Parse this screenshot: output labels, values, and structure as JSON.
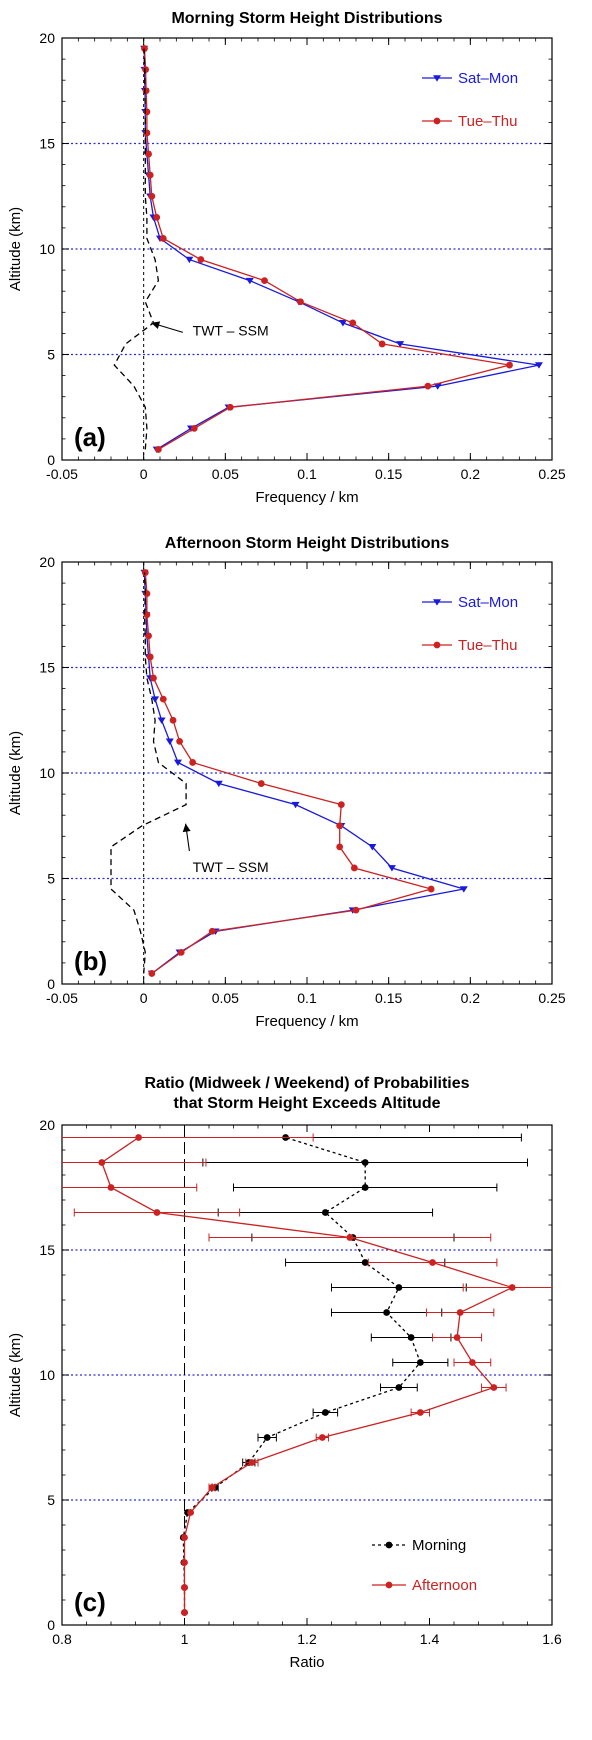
{
  "colors": {
    "sat_mon": "#1a1adc",
    "tue_thu": "#cc2222",
    "morning": "#000000",
    "afternoon": "#cc2222",
    "gridline": "#2a2ae0",
    "diff": "#000000"
  },
  "chart_data": [
    {
      "type": "line",
      "title": "Morning Storm Height Distributions",
      "panel_label": "(a)",
      "xlabel": "Frequency / km",
      "ylabel": "Altitude (km)",
      "xlim": [
        -0.05,
        0.25
      ],
      "ylim": [
        0,
        20
      ],
      "xticks": [
        "-0.05",
        "0",
        "0.05",
        "0.1",
        "0.15",
        "0.2",
        "0.25"
      ],
      "yticks": [
        "0",
        "5",
        "10",
        "15",
        "20"
      ],
      "hgrid": [
        5,
        10,
        15
      ],
      "legend_position": "top-right",
      "series": [
        {
          "name": "Sat–Mon",
          "marker": "triangle",
          "x": [
            0.008,
            0.029,
            0.052,
            0.18,
            0.242,
            0.157,
            0.122,
            0.095,
            0.065,
            0.028,
            0.01,
            0.006,
            0.004,
            0.003,
            0.002,
            0.001,
            0.001,
            0.0008,
            0.0005,
            0.0003
          ],
          "y": [
            0.5,
            1.5,
            2.5,
            3.5,
            4.5,
            5.5,
            6.5,
            7.5,
            8.5,
            9.5,
            10.5,
            11.5,
            12.5,
            13.5,
            14.5,
            15.5,
            16.5,
            17.5,
            18.5,
            19.5
          ]
        },
        {
          "name": "Tue–Thu",
          "marker": "circle",
          "x": [
            0.009,
            0.031,
            0.053,
            0.174,
            0.224,
            0.146,
            0.128,
            0.096,
            0.074,
            0.035,
            0.012,
            0.008,
            0.005,
            0.004,
            0.003,
            0.002,
            0.002,
            0.0015,
            0.0012,
            0.0005
          ],
          "y": [
            0.5,
            1.5,
            2.5,
            3.5,
            4.5,
            5.5,
            6.5,
            7.5,
            8.5,
            9.5,
            10.5,
            11.5,
            12.5,
            13.5,
            14.5,
            15.5,
            16.5,
            17.5,
            18.5,
            19.5
          ]
        },
        {
          "name": "TWT – SSM",
          "style": "dashed",
          "x": [
            0.001,
            0.002,
            0.001,
            -0.006,
            -0.018,
            -0.011,
            0.006,
            0.001,
            0.009,
            0.007,
            0.002,
            0.002,
            0.001,
            0.001,
            0.001,
            0.001,
            0.001,
            0.0007,
            0.0007,
            0.0002
          ],
          "y": [
            0.5,
            1.5,
            2.5,
            3.5,
            4.5,
            5.5,
            6.5,
            7.5,
            8.5,
            9.5,
            10.5,
            11.5,
            12.5,
            13.5,
            14.5,
            15.5,
            16.5,
            17.5,
            18.5,
            19.5
          ]
        }
      ],
      "annotations": [
        {
          "text": "TWT – SSM",
          "arrow_to": [
            0.001,
            6.5
          ]
        }
      ]
    },
    {
      "type": "line",
      "title": "Afternoon Storm Height Distributions",
      "panel_label": "(b)",
      "xlabel": "Frequency / km",
      "ylabel": "Altitude (km)",
      "xlim": [
        -0.05,
        0.25
      ],
      "ylim": [
        0,
        20
      ],
      "xticks": [
        "-0.05",
        "0",
        "0.05",
        "0.1",
        "0.15",
        "0.2",
        "0.25"
      ],
      "yticks": [
        "0",
        "5",
        "10",
        "15",
        "20"
      ],
      "hgrid": [
        5,
        10,
        15
      ],
      "legend_position": "top-right",
      "series": [
        {
          "name": "Sat–Mon",
          "marker": "triangle",
          "x": [
            0.005,
            0.022,
            0.044,
            0.128,
            0.196,
            0.152,
            0.14,
            0.121,
            0.093,
            0.046,
            0.021,
            0.016,
            0.011,
            0.007,
            0.004,
            0.003,
            0.002,
            0.0015,
            0.001,
            0.0005
          ],
          "y": [
            0.5,
            1.5,
            2.5,
            3.5,
            4.5,
            5.5,
            6.5,
            7.5,
            8.5,
            9.5,
            10.5,
            11.5,
            12.5,
            13.5,
            14.5,
            15.5,
            16.5,
            17.5,
            18.5,
            19.5
          ]
        },
        {
          "name": "Tue–Thu",
          "marker": "circle",
          "x": [
            0.005,
            0.023,
            0.042,
            0.13,
            0.176,
            0.129,
            0.12,
            0.12,
            0.121,
            0.072,
            0.03,
            0.022,
            0.018,
            0.012,
            0.006,
            0.004,
            0.003,
            0.002,
            0.002,
            0.001
          ],
          "y": [
            0.5,
            1.5,
            2.5,
            3.5,
            4.5,
            5.5,
            6.5,
            7.5,
            8.5,
            9.5,
            10.5,
            11.5,
            12.5,
            13.5,
            14.5,
            15.5,
            16.5,
            17.5,
            18.5,
            19.5
          ]
        },
        {
          "name": "TWT – SSM",
          "style": "dashed",
          "x": [
            0.0,
            0.001,
            -0.002,
            -0.006,
            -0.02,
            -0.02,
            -0.02,
            -0.001,
            0.026,
            0.026,
            0.009,
            0.006,
            0.007,
            0.005,
            0.002,
            0.001,
            0.001,
            0.0005,
            0.001,
            0.0005
          ],
          "y": [
            0.5,
            1.5,
            2.5,
            3.5,
            4.5,
            5.5,
            6.5,
            7.5,
            8.5,
            9.5,
            10.5,
            11.5,
            12.5,
            13.5,
            14.5,
            15.5,
            16.5,
            17.5,
            18.5,
            19.5
          ]
        }
      ],
      "annotations": [
        {
          "text": "TWT – SSM",
          "arrow_to": [
            0.022,
            7.6
          ]
        }
      ]
    },
    {
      "type": "line",
      "title": "Ratio (Midweek / Weekend) of Probabilities",
      "subtitle": "that Storm Height Exceeds Altitude",
      "panel_label": "(c)",
      "xlabel": "Ratio",
      "ylabel": "Altitude (km)",
      "xlim": [
        0.8,
        1.6
      ],
      "ylim": [
        0,
        20
      ],
      "xticks": [
        "0.8",
        "1",
        "1.2",
        "1.4",
        "1.6"
      ],
      "yticks": [
        "0",
        "5",
        "10",
        "15",
        "20"
      ],
      "hgrid": [
        5,
        10,
        15
      ],
      "vref": 1,
      "legend_position": "bottom-right",
      "series": [
        {
          "name": "Morning",
          "marker": "circle",
          "style": "dashed",
          "y": [
            0.5,
            1.5,
            2.5,
            3.5,
            4.5,
            5.5,
            6.5,
            7.5,
            8.5,
            9.5,
            10.5,
            11.5,
            12.5,
            13.5,
            14.5,
            15.5,
            16.5,
            17.5,
            18.5,
            19.5
          ],
          "x": [
            1.0,
            1.0,
            0.999,
            0.998,
            1.005,
            1.05,
            1.105,
            1.135,
            1.23,
            1.35,
            1.385,
            1.37,
            1.33,
            1.35,
            1.295,
            1.275,
            1.23,
            1.295,
            1.295,
            1.165
          ],
          "err": [
            0,
            0,
            0,
            0,
            0,
            0.005,
            0.01,
            0.015,
            0.02,
            0.03,
            0.045,
            0.065,
            0.09,
            0.11,
            0.13,
            0.165,
            0.175,
            0.215,
            0.265,
            0.385
          ]
        },
        {
          "name": "Afternoon",
          "marker": "circle",
          "style": "solid",
          "y": [
            0.5,
            1.5,
            2.5,
            3.5,
            4.5,
            5.5,
            6.5,
            7.5,
            8.5,
            9.5,
            10.5,
            11.5,
            12.5,
            13.5,
            14.5,
            15.5,
            16.5,
            17.5,
            18.5,
            19.5
          ],
          "x": [
            1.0,
            1.0,
            1.0,
            1.0,
            1.01,
            1.045,
            1.11,
            1.225,
            1.385,
            1.505,
            1.47,
            1.445,
            1.45,
            1.535,
            1.405,
            1.27,
            0.955,
            0.88,
            0.865,
            0.925
          ],
          "err": [
            0,
            0,
            0,
            0,
            0,
            0.005,
            0.01,
            0.01,
            0.015,
            0.02,
            0.03,
            0.04,
            0.055,
            0.08,
            0.105,
            0.23,
            0.135,
            0.14,
            0.17,
            0.285
          ]
        }
      ]
    }
  ]
}
